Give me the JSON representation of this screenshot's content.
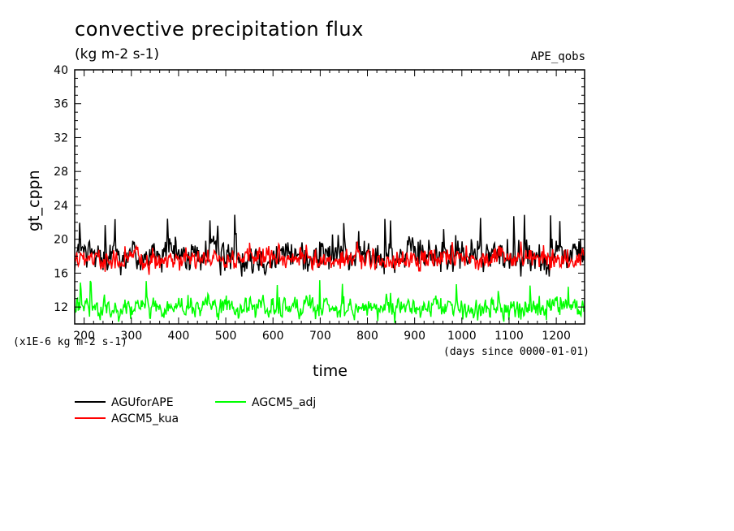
{
  "header": {
    "title": "convective precipitation flux",
    "units": "(kg m-2 s-1)",
    "run_label": "APE_qobs",
    "scale_note": "(x1E-6 kg m-2 s-1)",
    "days_note": "(days since 0000-01-01)"
  },
  "chart_data": {
    "type": "line",
    "title": "convective precipitation flux",
    "subtitle": "(kg m-2 s-1)",
    "xlabel": "time",
    "ylabel": "gt_cppn",
    "xlim": [
      180,
      1260
    ],
    "ylim": [
      10,
      40
    ],
    "xticks": [
      200,
      300,
      400,
      500,
      600,
      700,
      800,
      900,
      1000,
      1100,
      1200
    ],
    "xtick_labels": [
      "200",
      "300",
      "400",
      "500",
      "600",
      "700",
      "800",
      "900",
      "1000",
      "1100",
      "1200"
    ],
    "yticks": [
      12,
      16,
      20,
      24,
      28,
      32,
      36,
      40
    ],
    "ytick_labels": [
      "12",
      "16",
      "20",
      "24",
      "28",
      "32",
      "36",
      "40"
    ],
    "grid": false,
    "legend_position": "bottom-left",
    "series": [
      {
        "name": "AGUforAPE",
        "color": "#000000",
        "mean": 18.1,
        "amplitude": 1.5,
        "peak_max": 23.0,
        "min": 15.6
      },
      {
        "name": "AGCM5_kua",
        "color": "#ff0000",
        "mean": 17.6,
        "amplitude": 0.9,
        "peak_max": 20.0,
        "min": 15.8
      },
      {
        "name": "AGCM5_adj",
        "color": "#00ff00",
        "mean": 11.9,
        "amplitude": 0.9,
        "peak_max": 15.2,
        "min": 10.0
      }
    ]
  }
}
